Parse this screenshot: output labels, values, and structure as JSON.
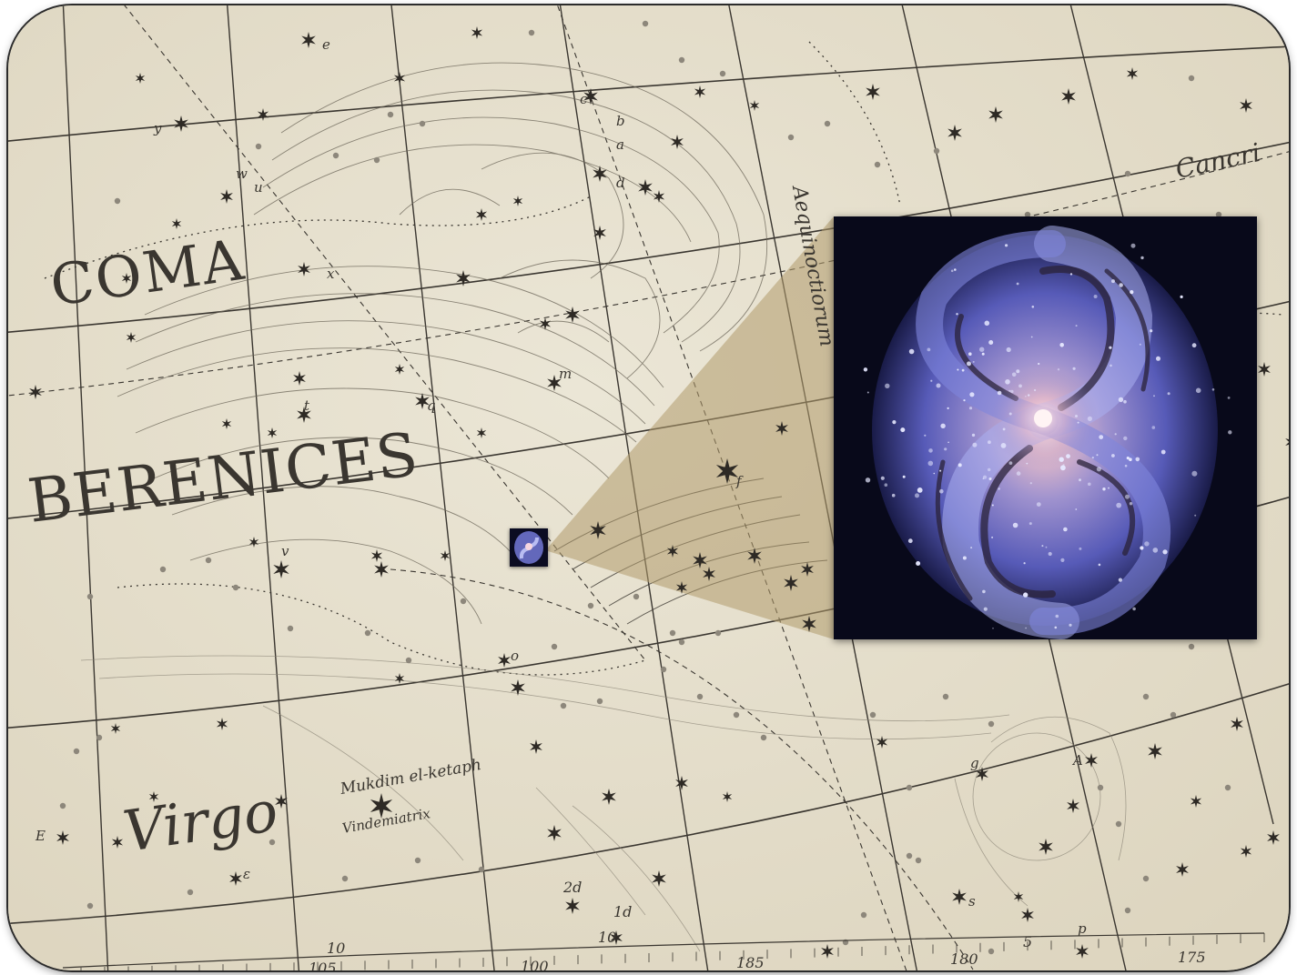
{
  "map": {
    "constellation_words": [
      "COMA",
      "BERENICES"
    ],
    "virgo": "Virgo",
    "cancri": "Cancri",
    "aequinoctiorum": "Aequinoctiorum",
    "mukdim": "Mukdim el-ketaph",
    "vindemiatrix": "Vindemiatrix",
    "border_degrees": [
      "105",
      "100",
      "185",
      "180",
      "175"
    ],
    "small_labels": [
      "10",
      "10",
      "5",
      "2d",
      "1d"
    ],
    "star_letters": [
      "y",
      "e",
      "a",
      "b",
      "c",
      "d",
      "w",
      "u",
      "x",
      "m",
      "q",
      "t",
      "v",
      "f",
      "o",
      "g",
      "A",
      "s",
      "p",
      "ε",
      "E"
    ]
  },
  "galaxy": {
    "colors": {
      "core": "#f7d6dd",
      "arm": "#7f86dc",
      "arm_light": "#b8bcf0",
      "dust": "#2a2238",
      "space": "#08091a"
    }
  },
  "colors": {
    "paper": "#e8e2d0",
    "ink": "#3a3630",
    "zoom_wedge": "#b09a6c"
  }
}
